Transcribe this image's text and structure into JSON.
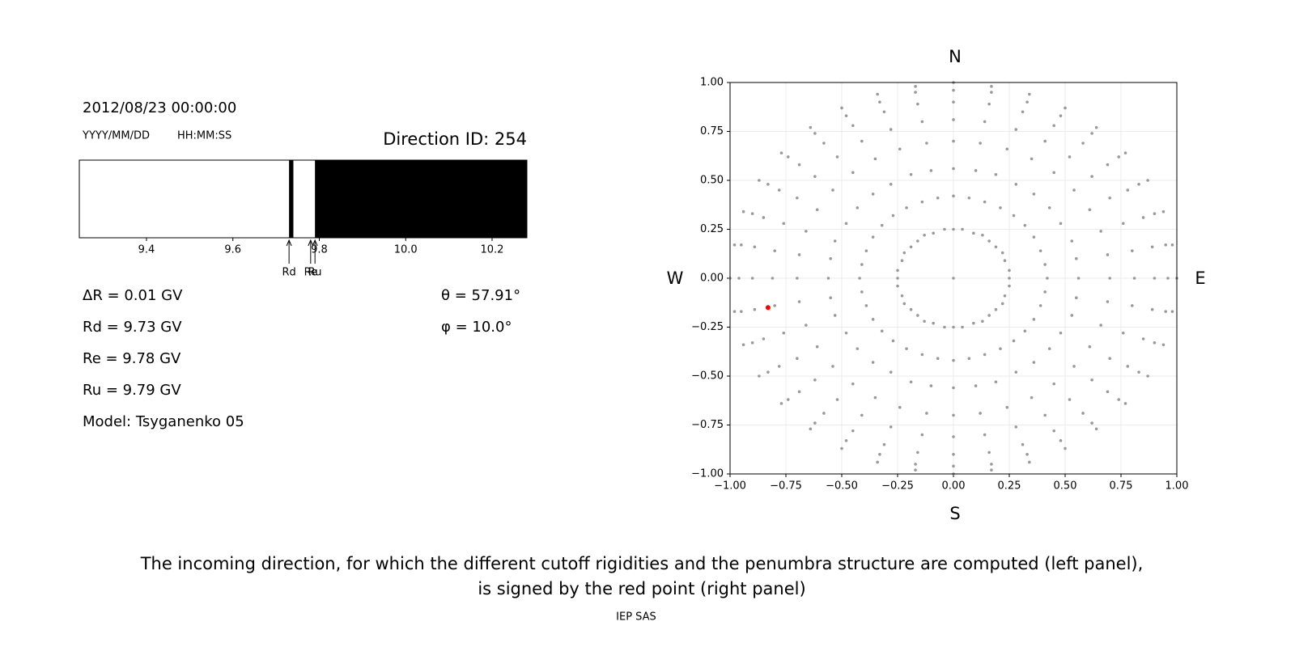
{
  "chart_data": [
    {
      "type": "penumbra",
      "date_time": "2012/08/23 00:00:00",
      "date_format": "YYYY/MM/DD",
      "time_format": "HH:MM:SS",
      "title": "Direction ID: 254",
      "xlim": [
        9.2445,
        10.2806
      ],
      "xticks": [
        9.4,
        9.6,
        9.8,
        {
          "value": 10,
          "label": "10.0"
        },
        10.2
      ],
      "color": "#000000",
      "forbidden_bands": [
        [
          9.73,
          9.74
        ],
        [
          9.79,
          10.2806
        ]
      ],
      "markers": [
        {
          "label": "Rd",
          "value": 9.73
        },
        {
          "label": "Re",
          "value": 9.78
        },
        {
          "label": "Ru",
          "value": 9.79
        }
      ],
      "info_lines": [
        "ΔR = 0.01 GV",
        "Rd = 9.73 GV",
        "Re = 9.78 GV",
        "Ru = 9.79 GV",
        "Model: Tsyganenko 05"
      ],
      "angle_lines": [
        "θ = 57.91°",
        "φ = 10.0°"
      ]
    },
    {
      "type": "scatter",
      "xlim": [
        -1,
        1
      ],
      "ylim": [
        -1,
        1
      ],
      "grid": true,
      "xticks": [
        {
          "value": -1,
          "label": "−1.00"
        },
        {
          "value": -0.75,
          "label": "−0.75"
        },
        {
          "value": -0.5,
          "label": "−0.50"
        },
        {
          "value": -0.25,
          "label": "−0.25"
        },
        {
          "value": 0,
          "label": "0.00"
        },
        {
          "value": 0.25,
          "label": "0.25"
        },
        {
          "value": 0.5,
          "label": "0.50"
        },
        {
          "value": 0.75,
          "label": "0.75"
        },
        {
          "value": 1,
          "label": "1.00"
        }
      ],
      "yticks": [
        {
          "value": -1,
          "label": "−1.00"
        },
        {
          "value": -0.75,
          "label": "−0.75"
        },
        {
          "value": -0.5,
          "label": "−0.50"
        },
        {
          "value": -0.25,
          "label": "−0.25"
        },
        {
          "value": 0,
          "label": "0.00"
        },
        {
          "value": 0.25,
          "label": "0.25"
        },
        {
          "value": 0.5,
          "label": "0.50"
        },
        {
          "value": 0.75,
          "label": "0.75"
        },
        {
          "value": 1,
          "label": "1.00"
        }
      ],
      "compass": {
        "top": "N",
        "bottom": "S",
        "left": "W",
        "right": "E"
      },
      "series": [
        {
          "color": "#999999",
          "x": [
            0,
            0.25,
            0.25,
            0.23,
            0.22,
            0.19,
            0.16,
            0.13,
            0.09,
            0.04,
            0,
            -0.04,
            -0.09,
            -0.13,
            -0.16,
            -0.19,
            -0.22,
            -0.23,
            -0.25,
            -0.25,
            -0.25,
            -0.23,
            -0.22,
            -0.19,
            -0.16,
            -0.13,
            -0.09,
            -0.04,
            0,
            0.04,
            0.09,
            0.13,
            0.16,
            0.19,
            0.22,
            0.23,
            0.25,
            0.42,
            0.41,
            0.39,
            0.36,
            0.32,
            0.27,
            0.21,
            0.14,
            0.07,
            0,
            -0.07,
            -0.14,
            -0.21,
            -0.27,
            -0.32,
            -0.36,
            -0.39,
            -0.41,
            -0.42,
            -0.41,
            -0.39,
            -0.36,
            -0.32,
            -0.27,
            -0.21,
            -0.14,
            -0.07,
            0,
            0.07,
            0.14,
            0.21,
            0.27,
            0.32,
            0.36,
            0.39,
            0.41,
            0.56,
            0.55,
            0.53,
            0.48,
            0.43,
            0.36,
            0.28,
            0.19,
            0.1,
            0,
            -0.1,
            -0.19,
            -0.28,
            -0.36,
            -0.43,
            -0.48,
            -0.53,
            -0.55,
            -0.56,
            -0.55,
            -0.53,
            -0.48,
            -0.43,
            -0.36,
            -0.28,
            -0.19,
            -0.1,
            0,
            0.1,
            0.19,
            0.28,
            0.36,
            0.43,
            0.48,
            0.53,
            0.55,
            0.7,
            0.69,
            0.66,
            0.61,
            0.54,
            0.45,
            0.35,
            0.24,
            0.12,
            0,
            -0.12,
            -0.24,
            -0.35,
            -0.45,
            -0.54,
            -0.61,
            -0.66,
            -0.69,
            -0.7,
            -0.69,
            -0.66,
            -0.61,
            -0.54,
            -0.45,
            -0.35,
            -0.24,
            -0.12,
            0,
            0.12,
            0.24,
            0.35,
            0.45,
            0.54,
            0.61,
            0.66,
            0.69,
            0.81,
            0.8,
            0.76,
            0.7,
            0.62,
            0.52,
            0.41,
            0.28,
            0.14,
            0,
            -0.14,
            -0.28,
            -0.41,
            -0.52,
            -0.62,
            -0.7,
            -0.76,
            -0.8,
            -0.81,
            -0.8,
            -0.76,
            -0.7,
            -0.62,
            -0.52,
            -0.41,
            -0.28,
            -0.14,
            0,
            0.14,
            0.28,
            0.41,
            0.52,
            0.62,
            0.7,
            0.76,
            0.8,
            0.9,
            0.89,
            0.85,
            0.78,
            0.69,
            0.58,
            0.45,
            0.31,
            0.16,
            0,
            -0.16,
            -0.31,
            -0.45,
            -0.58,
            -0.69,
            -0.78,
            -0.85,
            -0.89,
            -0.9,
            -0.89,
            -0.85,
            -0.78,
            -0.69,
            -0.58,
            -0.45,
            -0.31,
            -0.16,
            0,
            0.16,
            0.31,
            0.45,
            0.58,
            0.69,
            0.78,
            0.85,
            0.89,
            0.96,
            0.95,
            0.9,
            0.83,
            0.74,
            0.62,
            0.48,
            0.33,
            0.17,
            0,
            -0.17,
            -0.33,
            -0.48,
            -0.62,
            -0.74,
            -0.83,
            -0.9,
            -0.95,
            -0.96,
            -0.95,
            -0.9,
            -0.83,
            -0.74,
            -0.62,
            -0.48,
            -0.33,
            -0.17,
            0,
            0.17,
            0.33,
            0.48,
            0.62,
            0.74,
            0.83,
            0.9,
            0.95,
            1,
            0.98,
            0.94,
            0.87,
            0.77,
            0.64,
            0.5,
            0.34,
            0.17,
            0,
            -0.17,
            -0.34,
            -0.5,
            -0.64,
            -0.77,
            -0.87,
            -0.94,
            -0.98,
            -1,
            -0.98,
            -0.94,
            -0.87,
            -0.77,
            -0.64,
            -0.5,
            -0.34,
            -0.17,
            0,
            0.17,
            0.34,
            0.5,
            0.64,
            0.77,
            0.87,
            0.94,
            0.98
          ],
          "y": [
            0,
            0,
            0.04,
            0.09,
            0.13,
            0.16,
            0.19,
            0.22,
            0.23,
            0.25,
            0.25,
            0.25,
            0.23,
            0.22,
            0.19,
            0.16,
            0.13,
            0.09,
            0.04,
            0,
            -0.04,
            -0.09,
            -0.13,
            -0.16,
            -0.19,
            -0.22,
            -0.23,
            -0.25,
            -0.25,
            -0.25,
            -0.23,
            -0.22,
            -0.19,
            -0.16,
            -0.13,
            -0.09,
            -0.04,
            0,
            0.07,
            0.14,
            0.21,
            0.27,
            0.32,
            0.36,
            0.39,
            0.41,
            0.42,
            0.41,
            0.39,
            0.36,
            0.32,
            0.27,
            0.21,
            0.14,
            0.07,
            0,
            -0.07,
            -0.14,
            -0.21,
            -0.27,
            -0.32,
            -0.36,
            -0.39,
            -0.41,
            -0.42,
            -0.41,
            -0.39,
            -0.36,
            -0.32,
            -0.27,
            -0.21,
            -0.14,
            -0.07,
            0,
            0.1,
            0.19,
            0.28,
            0.36,
            0.43,
            0.48,
            0.53,
            0.55,
            0.56,
            0.55,
            0.53,
            0.48,
            0.43,
            0.36,
            0.28,
            0.19,
            0.1,
            0,
            -0.1,
            -0.19,
            -0.28,
            -0.36,
            -0.43,
            -0.48,
            -0.53,
            -0.55,
            -0.56,
            -0.55,
            -0.53,
            -0.48,
            -0.43,
            -0.36,
            -0.28,
            -0.19,
            -0.1,
            0,
            0.12,
            0.24,
            0.35,
            0.45,
            0.54,
            0.61,
            0.66,
            0.69,
            0.7,
            0.69,
            0.66,
            0.61,
            0.54,
            0.45,
            0.35,
            0.24,
            0.12,
            0,
            -0.12,
            -0.24,
            -0.35,
            -0.45,
            -0.54,
            -0.61,
            -0.66,
            -0.69,
            -0.7,
            -0.69,
            -0.66,
            -0.61,
            -0.54,
            -0.45,
            -0.35,
            -0.24,
            -0.12,
            0,
            0.14,
            0.28,
            0.41,
            0.52,
            0.62,
            0.7,
            0.76,
            0.8,
            0.81,
            0.8,
            0.76,
            0.7,
            0.62,
            0.52,
            0.41,
            0.28,
            0.14,
            0,
            -0.14,
            -0.28,
            -0.41,
            -0.52,
            -0.62,
            -0.7,
            -0.76,
            -0.8,
            -0.81,
            -0.8,
            -0.76,
            -0.7,
            -0.62,
            -0.52,
            -0.41,
            -0.28,
            -0.14,
            0,
            0.16,
            0.31,
            0.45,
            0.58,
            0.69,
            0.78,
            0.85,
            0.89,
            0.9,
            0.89,
            0.85,
            0.78,
            0.69,
            0.58,
            0.45,
            0.31,
            0.16,
            0,
            -0.16,
            -0.31,
            -0.45,
            -0.58,
            -0.69,
            -0.78,
            -0.85,
            -0.89,
            -0.9,
            -0.89,
            -0.85,
            -0.78,
            -0.69,
            -0.58,
            -0.45,
            -0.31,
            -0.16,
            0,
            0.17,
            0.33,
            0.48,
            0.62,
            0.74,
            0.83,
            0.9,
            0.95,
            0.96,
            0.95,
            0.9,
            0.83,
            0.74,
            0.62,
            0.48,
            0.33,
            0.17,
            0,
            -0.17,
            -0.33,
            -0.48,
            -0.62,
            -0.74,
            -0.83,
            -0.9,
            -0.95,
            -0.96,
            -0.95,
            -0.9,
            -0.83,
            -0.74,
            -0.62,
            -0.48,
            -0.33,
            -0.17,
            0,
            0.17,
            0.34,
            0.5,
            0.64,
            0.77,
            0.87,
            0.94,
            0.98,
            1,
            0.98,
            0.94,
            0.87,
            0.77,
            0.64,
            0.5,
            0.34,
            0.17,
            0,
            -0.17,
            -0.34,
            -0.5,
            -0.64,
            -0.77,
            -0.87,
            -0.94,
            -0.98,
            -1,
            -0.98,
            -0.94,
            -0.87,
            -0.77,
            -0.64,
            -0.5,
            -0.34,
            -0.17
          ]
        },
        {
          "color": "#ff0000",
          "x": [
            -0.83
          ],
          "y": [
            -0.15
          ]
        }
      ]
    }
  ],
  "caption": {
    "lines": [
      "The incoming direction, for which the different cutoff rigidities and the penumbra structure are computed (left panel),",
      "is signed by the red point (right panel)"
    ],
    "credit": "IEP SAS"
  }
}
